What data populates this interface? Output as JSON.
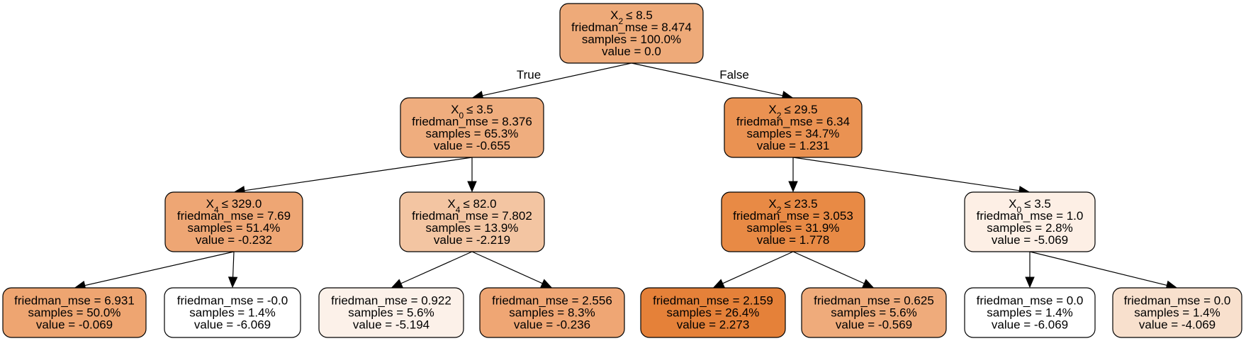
{
  "tree": {
    "edge_labels": {
      "true_label": "True",
      "false_label": "False"
    },
    "nodes": [
      {
        "id": "n0",
        "split_var": "X",
        "split_sub": "2",
        "split_op": "≤ 8.5",
        "mse": "friedman_mse = 8.474",
        "samples": "samples = 100.0%",
        "value": "value = 0.0",
        "fill": "#eeaa79"
      },
      {
        "id": "n1",
        "split_var": "X",
        "split_sub": "0",
        "split_op": "≤ 3.5",
        "mse": "friedman_mse = 8.376",
        "samples": "samples = 65.3%",
        "value": "value = -0.655",
        "fill": "#efad7e"
      },
      {
        "id": "n2",
        "split_var": "X",
        "split_sub": "2",
        "split_op": "≤ 29.5",
        "mse": "friedman_mse = 6.34",
        "samples": "samples = 34.7%",
        "value": "value = 1.231",
        "fill": "#ea9252"
      },
      {
        "id": "n3",
        "split_var": "X",
        "split_sub": "4",
        "split_op": "≤ 329.0",
        "mse": "friedman_mse = 7.69",
        "samples": "samples = 51.4%",
        "value": "value = -0.232",
        "fill": "#eea674"
      },
      {
        "id": "n4",
        "split_var": "X",
        "split_sub": "4",
        "split_op": "≤ 82.0",
        "mse": "friedman_mse = 7.802",
        "samples": "samples = 13.9%",
        "value": "value = -2.219",
        "fill": "#f3c5a2"
      },
      {
        "id": "n5",
        "split_var": "X",
        "split_sub": "2",
        "split_op": "≤ 23.5",
        "mse": "friedman_mse = 3.053",
        "samples": "samples = 31.9%",
        "value": "value = 1.778",
        "fill": "#e88a45"
      },
      {
        "id": "n6",
        "split_var": "X",
        "split_sub": "0",
        "split_op": "≤ 3.5",
        "mse": "friedman_mse = 1.0",
        "samples": "samples = 2.8%",
        "value": "value = -5.069",
        "fill": "#fdefe5"
      },
      {
        "id": "n7",
        "mse": "friedman_mse = 6.931",
        "samples": "samples = 50.0%",
        "value": "value = -0.069",
        "fill": "#eea571"
      },
      {
        "id": "n8",
        "mse": "friedman_mse = -0.0",
        "samples": "samples = 1.4%",
        "value": "value = -6.069",
        "fill": "#ffffff"
      },
      {
        "id": "n9",
        "mse": "friedman_mse = 0.922",
        "samples": "samples = 5.6%",
        "value": "value = -5.194",
        "fill": "#fcf1e9"
      },
      {
        "id": "n10",
        "mse": "friedman_mse = 2.556",
        "samples": "samples = 8.3%",
        "value": "value = -0.236",
        "fill": "#efa674"
      },
      {
        "id": "n11",
        "mse": "friedman_mse = 2.159",
        "samples": "samples = 26.4%",
        "value": "value = 2.273",
        "fill": "#e58139"
      },
      {
        "id": "n12",
        "mse": "friedman_mse = 0.625",
        "samples": "samples = 5.6%",
        "value": "value = -0.569",
        "fill": "#efab7b"
      },
      {
        "id": "n13",
        "mse": "friedman_mse = 0.0",
        "samples": "samples = 1.4%",
        "value": "value = -6.069",
        "fill": "#ffffff"
      },
      {
        "id": "n14",
        "mse": "friedman_mse = 0.0",
        "samples": "samples = 1.4%",
        "value": "value = -4.069",
        "fill": "#f8e0cd"
      }
    ],
    "edges": [
      {
        "from": "n0",
        "to": "n1"
      },
      {
        "from": "n0",
        "to": "n2"
      },
      {
        "from": "n1",
        "to": "n3"
      },
      {
        "from": "n1",
        "to": "n4"
      },
      {
        "from": "n2",
        "to": "n5"
      },
      {
        "from": "n2",
        "to": "n6"
      },
      {
        "from": "n3",
        "to": "n7"
      },
      {
        "from": "n3",
        "to": "n8"
      },
      {
        "from": "n4",
        "to": "n9"
      },
      {
        "from": "n4",
        "to": "n10"
      },
      {
        "from": "n5",
        "to": "n11"
      },
      {
        "from": "n5",
        "to": "n12"
      },
      {
        "from": "n6",
        "to": "n13"
      },
      {
        "from": "n6",
        "to": "n14"
      }
    ]
  }
}
